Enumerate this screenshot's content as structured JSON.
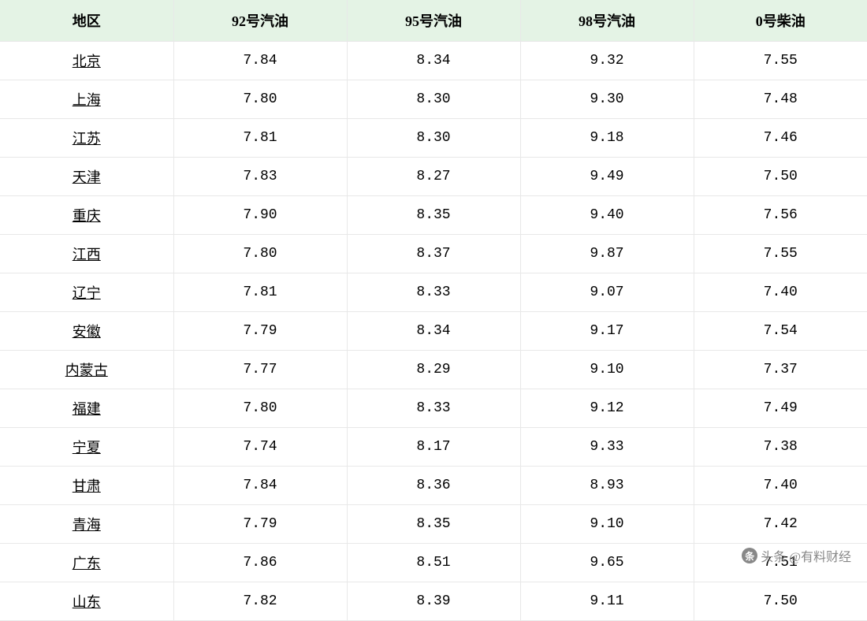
{
  "table": {
    "type": "table",
    "header_background": "#e4f3e5",
    "border_color": "#e8e8e8",
    "text_color": "#000000",
    "header_fontsize": 18,
    "cell_fontsize": 18,
    "columns": [
      {
        "key": "region",
        "label": "地区",
        "width": "20%",
        "is_link": true
      },
      {
        "key": "gas92",
        "label": "92号汽油",
        "width": "20%",
        "is_link": false
      },
      {
        "key": "gas95",
        "label": "95号汽油",
        "width": "20%",
        "is_link": false
      },
      {
        "key": "gas98",
        "label": "98号汽油",
        "width": "20%",
        "is_link": false
      },
      {
        "key": "diesel0",
        "label": "0号柴油",
        "width": "20%",
        "is_link": false
      }
    ],
    "rows": [
      {
        "region": "北京",
        "gas92": "7.84",
        "gas95": "8.34",
        "gas98": "9.32",
        "diesel0": "7.55"
      },
      {
        "region": "上海",
        "gas92": "7.80",
        "gas95": "8.30",
        "gas98": "9.30",
        "diesel0": "7.48"
      },
      {
        "region": "江苏",
        "gas92": "7.81",
        "gas95": "8.30",
        "gas98": "9.18",
        "diesel0": "7.46"
      },
      {
        "region": "天津",
        "gas92": "7.83",
        "gas95": "8.27",
        "gas98": "9.49",
        "diesel0": "7.50"
      },
      {
        "region": "重庆",
        "gas92": "7.90",
        "gas95": "8.35",
        "gas98": "9.40",
        "diesel0": "7.56"
      },
      {
        "region": "江西",
        "gas92": "7.80",
        "gas95": "8.37",
        "gas98": "9.87",
        "diesel0": "7.55"
      },
      {
        "region": "辽宁",
        "gas92": "7.81",
        "gas95": "8.33",
        "gas98": "9.07",
        "diesel0": "7.40"
      },
      {
        "region": "安徽",
        "gas92": "7.79",
        "gas95": "8.34",
        "gas98": "9.17",
        "diesel0": "7.54"
      },
      {
        "region": "内蒙古",
        "gas92": "7.77",
        "gas95": "8.29",
        "gas98": "9.10",
        "diesel0": "7.37"
      },
      {
        "region": "福建",
        "gas92": "7.80",
        "gas95": "8.33",
        "gas98": "9.12",
        "diesel0": "7.49"
      },
      {
        "region": "宁夏",
        "gas92": "7.74",
        "gas95": "8.17",
        "gas98": "9.33",
        "diesel0": "7.38"
      },
      {
        "region": "甘肃",
        "gas92": "7.84",
        "gas95": "8.36",
        "gas98": "8.93",
        "diesel0": "7.40"
      },
      {
        "region": "青海",
        "gas92": "7.79",
        "gas95": "8.35",
        "gas98": "9.10",
        "diesel0": "7.42"
      },
      {
        "region": "广东",
        "gas92": "7.86",
        "gas95": "8.51",
        "gas98": "9.65",
        "diesel0": "7.51"
      },
      {
        "region": "山东",
        "gas92": "7.82",
        "gas95": "8.39",
        "gas98": "9.11",
        "diesel0": "7.50"
      }
    ]
  },
  "watermark": {
    "prefix": "头条",
    "text": "@有料财经",
    "color": "#888888"
  }
}
